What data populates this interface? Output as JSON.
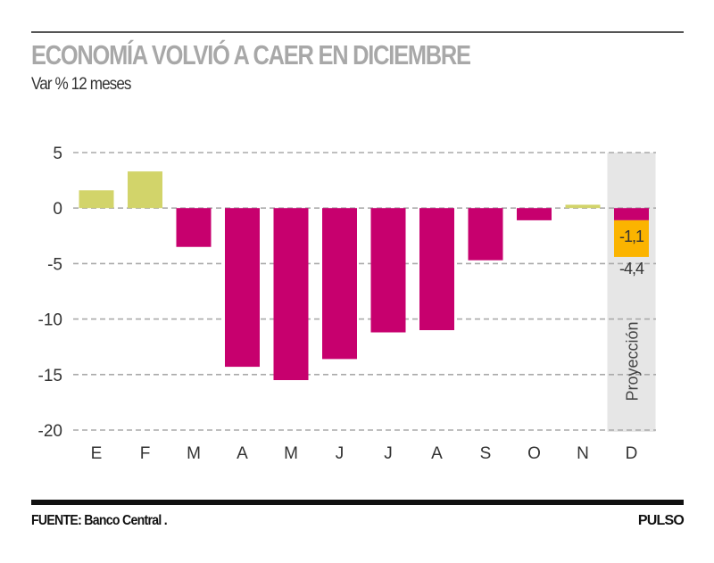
{
  "header": {
    "title": "ECONOMÍA VOLVIÓ A CAER EN DICIEMBRE",
    "subtitle": "Var % 12 meses"
  },
  "footer": {
    "source": "FUENTE: Banco Central .",
    "brand": "PULSO"
  },
  "colors": {
    "positive": "#d2d46a",
    "negative": "#c7006e",
    "projection_band": "#e6e6e6",
    "projection_range": "#fbb400",
    "grid": "#aaaaaa",
    "text": "#333333"
  },
  "chart_data": {
    "type": "bar",
    "title": "ECONOMÍA VOLVIÓ A CAER EN DICIEMBRE",
    "subtitle": "Var % 12 meses",
    "xlabel": "",
    "ylabel": "",
    "categories": [
      "E",
      "F",
      "M",
      "A",
      "M",
      "J",
      "J",
      "A",
      "S",
      "O",
      "N",
      "D"
    ],
    "values": [
      1.6,
      3.3,
      -3.5,
      -14.3,
      -15.5,
      -13.6,
      -11.2,
      -11.0,
      -4.7,
      -1.1,
      0.3,
      -1.1
    ],
    "ylim": [
      -20,
      5
    ],
    "yticks": [
      5,
      0,
      -5,
      -10,
      -15,
      -20
    ],
    "ytick_labels": [
      "5",
      "0",
      "-5",
      "-10",
      "-15",
      "-20"
    ],
    "grid": true,
    "projection": {
      "category": "D",
      "label": "Proyección",
      "range": [
        -1.1,
        -4.4
      ],
      "range_labels": [
        "-1,1",
        "-4,4"
      ]
    }
  }
}
